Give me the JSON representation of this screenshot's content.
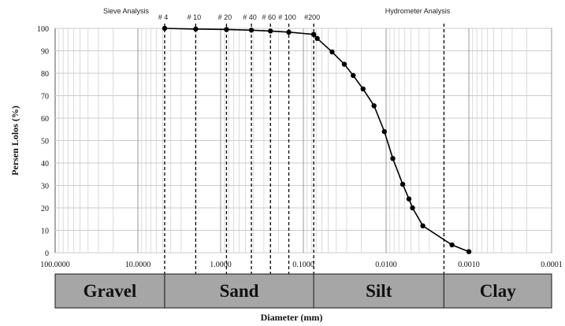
{
  "chart_data": {
    "type": "line",
    "title": "",
    "xlabel": "Diameter (mm)",
    "ylabel": "Persen Lolos (%)",
    "x_scale": "log",
    "x_reversed": true,
    "xlim": [
      100,
      0.0001
    ],
    "ylim": [
      0,
      100
    ],
    "grid": true,
    "y_ticks": [
      "0",
      "10",
      "20",
      "30",
      "40",
      "50",
      "60",
      "70",
      "80",
      "90",
      "100"
    ],
    "x_ticks": [
      {
        "value": 100,
        "label": "100.0000"
      },
      {
        "value": 10,
        "label": "10.0000"
      },
      {
        "value": 1,
        "label": "1.0000"
      },
      {
        "value": 0.1,
        "label": "0.1000"
      },
      {
        "value": 0.01,
        "label": "0.0100"
      },
      {
        "value": 0.001,
        "label": "0.0010"
      },
      {
        "value": 0.0001,
        "label": "0.0001"
      }
    ],
    "series": [
      {
        "x": [
          4.75,
          2.0,
          0.85,
          0.425,
          0.25,
          0.15,
          0.075,
          0.068,
          0.045,
          0.032,
          0.025,
          0.019,
          0.014,
          0.0105,
          0.0083,
          0.0063,
          0.0053,
          0.0048,
          0.0036,
          0.0016,
          0.001
        ],
        "y": [
          100,
          99.7,
          99.5,
          99.2,
          98.8,
          98.3,
          97.3,
          95.5,
          89.5,
          84,
          79,
          73,
          65.5,
          54,
          42,
          30.5,
          24,
          20,
          12,
          3.5,
          0.5
        ]
      }
    ],
    "sieves": [
      {
        "label": "# 4",
        "x": 4.75
      },
      {
        "label": "# 10",
        "x": 2.0
      },
      {
        "label": "# 20",
        "x": 0.85
      },
      {
        "label": "# 40",
        "x": 0.425
      },
      {
        "label": "# 60",
        "x": 0.25
      },
      {
        "label": "# 100",
        "x": 0.15
      },
      {
        "label": "#200",
        "x": 0.075
      }
    ],
    "boundary_lines": [
      0.002
    ],
    "section_labels": {
      "sieve": "Sieve Analysis",
      "hydrometer": "Hydrometer Analysis"
    },
    "soil_classes": [
      {
        "label": "Gravel",
        "from": 100,
        "to": 4.75
      },
      {
        "label": "Sand",
        "from": 4.75,
        "to": 0.075
      },
      {
        "label": "Silt",
        "from": 0.075,
        "to": 0.002
      },
      {
        "label": "Clay",
        "from": 0.002,
        "to": 0.0001
      }
    ],
    "colors": {
      "line": "#000000",
      "grid": "#cccccc",
      "box_fill": "#a6a6a6",
      "box_border": "#333333"
    }
  }
}
